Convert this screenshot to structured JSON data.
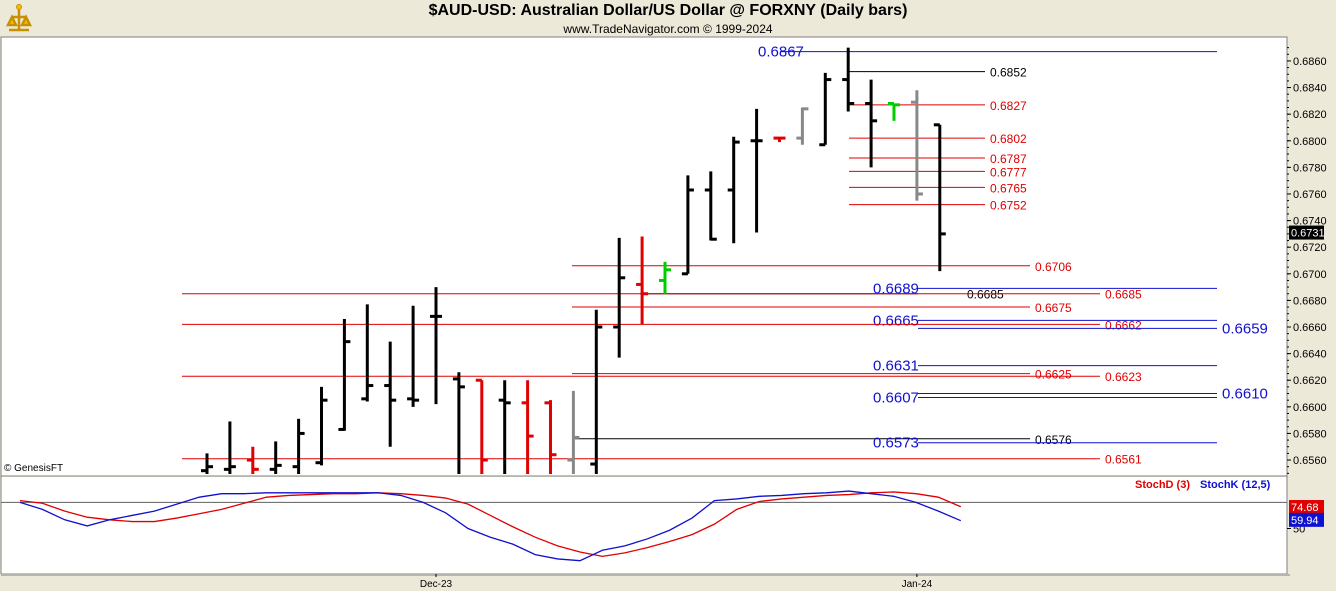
{
  "header": {
    "title": "$AUD-USD:  Australian Dollar/US Dollar @ FORXNY  (Daily bars)",
    "subtitle": "www.TradeNavigator.com © 1999-2024",
    "copyright": "© GenesisFT"
  },
  "colors": {
    "background": "#ffffff",
    "frame": "#ece9d8",
    "up_bar": "#000000",
    "down_bar": "#e00000",
    "neutral_bar": "#888888",
    "green_bar": "#00cc00",
    "red_level": "#e00000",
    "blue_level": "#1010d0",
    "black_level": "#000000",
    "stochD": "#e00000",
    "stochK": "#1010d0"
  },
  "chart_data": [
    {
      "type": "ohlc",
      "title": "$AUD-USD:  Australian Dollar/US Dollar @ FORXNY  (Daily bars)",
      "ylim": [
        0.6548,
        0.6878
      ],
      "y_ticks": [
        "0.6560",
        "0.6580",
        "0.6600",
        "0.6620",
        "0.6640",
        "0.6660",
        "0.6680",
        "0.6700",
        "0.6720",
        "0.6740",
        "0.6760",
        "0.6780",
        "0.6800",
        "0.6820",
        "0.6840",
        "0.6860"
      ],
      "last_price": "0.6731",
      "x_labels": [
        {
          "label": "Dec-23",
          "index": 10
        },
        {
          "label": "Jan-24",
          "index": 31
        }
      ],
      "bars": [
        {
          "o": 0.6552,
          "h": 0.6565,
          "l": 0.6548,
          "c": 0.6555,
          "color": "up"
        },
        {
          "o": 0.6553,
          "h": 0.6589,
          "l": 0.6548,
          "c": 0.6555,
          "color": "up"
        },
        {
          "o": 0.656,
          "h": 0.657,
          "l": 0.6548,
          "c": 0.6553,
          "color": "down"
        },
        {
          "o": 0.6553,
          "h": 0.6574,
          "l": 0.6548,
          "c": 0.6556,
          "color": "up"
        },
        {
          "o": 0.6555,
          "h": 0.6591,
          "l": 0.6548,
          "c": 0.658,
          "color": "up"
        },
        {
          "o": 0.6558,
          "h": 0.6615,
          "l": 0.6556,
          "c": 0.6605,
          "color": "up"
        },
        {
          "o": 0.6583,
          "h": 0.6666,
          "l": 0.6582,
          "c": 0.6649,
          "color": "up"
        },
        {
          "o": 0.6606,
          "h": 0.6677,
          "l": 0.6604,
          "c": 0.6616,
          "color": "up"
        },
        {
          "o": 0.6616,
          "h": 0.6649,
          "l": 0.657,
          "c": 0.6605,
          "color": "up"
        },
        {
          "o": 0.6606,
          "h": 0.6676,
          "l": 0.66,
          "c": 0.6605,
          "color": "up"
        },
        {
          "o": 0.6668,
          "h": 0.669,
          "l": 0.6602,
          "c": 0.6668,
          "color": "up"
        },
        {
          "o": 0.6621,
          "h": 0.6626,
          "l": 0.6548,
          "c": 0.6615,
          "color": "up"
        },
        {
          "o": 0.662,
          "h": 0.662,
          "l": 0.6548,
          "c": 0.656,
          "color": "down"
        },
        {
          "o": 0.6605,
          "h": 0.662,
          "l": 0.6548,
          "c": 0.6603,
          "color": "up"
        },
        {
          "o": 0.6603,
          "h": 0.662,
          "l": 0.6548,
          "c": 0.6578,
          "color": "down"
        },
        {
          "o": 0.6603,
          "h": 0.6605,
          "l": 0.6548,
          "c": 0.6564,
          "color": "down"
        },
        {
          "o": 0.656,
          "h": 0.6612,
          "l": 0.6548,
          "c": 0.6577,
          "color": "neutral"
        },
        {
          "o": 0.6557,
          "h": 0.6673,
          "l": 0.6548,
          "c": 0.666,
          "color": "up"
        },
        {
          "o": 0.666,
          "h": 0.6727,
          "l": 0.6637,
          "c": 0.6697,
          "color": "up"
        },
        {
          "o": 0.6692,
          "h": 0.6728,
          "l": 0.6662,
          "c": 0.6685,
          "color": "down"
        },
        {
          "o": 0.6695,
          "h": 0.6709,
          "l": 0.6685,
          "c": 0.6703,
          "color": "green"
        },
        {
          "o": 0.67,
          "h": 0.6774,
          "l": 0.67,
          "c": 0.6763,
          "color": "up"
        },
        {
          "o": 0.6763,
          "h": 0.6777,
          "l": 0.6725,
          "c": 0.6726,
          "color": "up"
        },
        {
          "o": 0.6763,
          "h": 0.6803,
          "l": 0.6723,
          "c": 0.6799,
          "color": "up"
        },
        {
          "o": 0.68,
          "h": 0.6824,
          "l": 0.6731,
          "c": 0.68,
          "color": "up"
        },
        {
          "o": 0.6802,
          "h": 0.6802,
          "l": 0.6799,
          "c": 0.6802,
          "color": "down"
        },
        {
          "o": 0.6802,
          "h": 0.6825,
          "l": 0.6797,
          "c": 0.6824,
          "color": "neutral"
        },
        {
          "o": 0.6797,
          "h": 0.6851,
          "l": 0.6797,
          "c": 0.6846,
          "color": "up"
        },
        {
          "o": 0.6846,
          "h": 0.687,
          "l": 0.6822,
          "c": 0.6828,
          "color": "up"
        },
        {
          "o": 0.6828,
          "h": 0.6846,
          "l": 0.678,
          "c": 0.6815,
          "color": "up"
        },
        {
          "o": 0.6828,
          "h": 0.6828,
          "l": 0.6815,
          "c": 0.6827,
          "color": "green"
        },
        {
          "o": 0.6829,
          "h": 0.6838,
          "l": 0.6755,
          "c": 0.676,
          "color": "neutral"
        },
        {
          "o": 0.6812,
          "h": 0.6812,
          "l": 0.6702,
          "c": 0.673,
          "color": "up"
        }
      ]
    },
    {
      "type": "line",
      "title": "StochD (3) / StochK (12,5)",
      "ylim": [
        0,
        100
      ],
      "y_ticks": [
        "50"
      ],
      "levels": [
        80
      ],
      "series": [
        {
          "name": "StochD (3)",
          "last": "74.68",
          "values": [
            82,
            79,
            70,
            63,
            60,
            58,
            58,
            62,
            67,
            72,
            79,
            86,
            88,
            89,
            90,
            90,
            91,
            90,
            88,
            85,
            78,
            65,
            52,
            40,
            30,
            23,
            18,
            22,
            28,
            35,
            43,
            55,
            72,
            81,
            84,
            86,
            88,
            89,
            91,
            92,
            90,
            86,
            75
          ]
        },
        {
          "name": "StochK (12,5)",
          "last": "59.94",
          "values": [
            80,
            72,
            60,
            53,
            60,
            65,
            70,
            78,
            86,
            90,
            90,
            91,
            91,
            91,
            91,
            91,
            91,
            88,
            80,
            68,
            50,
            40,
            32,
            20,
            15,
            13,
            25,
            30,
            38,
            48,
            62,
            82,
            84,
            87,
            88,
            90,
            91,
            93,
            90,
            87,
            80,
            70,
            59
          ]
        }
      ]
    }
  ],
  "levels": [
    {
      "value": "0.6867",
      "color": "blue",
      "style": "long"
    },
    {
      "value": "0.6852",
      "color": "black",
      "style": "short"
    },
    {
      "value": "0.6827",
      "color": "red",
      "style": "short"
    },
    {
      "value": "0.6802",
      "color": "red",
      "style": "short"
    },
    {
      "value": "0.6787",
      "color": "red",
      "style": "short"
    },
    {
      "value": "0.6777",
      "color": "red",
      "style": "short"
    },
    {
      "value": "0.6765",
      "color": "red",
      "style": "short"
    },
    {
      "value": "0.6752",
      "color": "red",
      "style": "short"
    },
    {
      "value": "0.6706",
      "color": "red",
      "style": "mid"
    },
    {
      "value": "0.6689",
      "color": "blue",
      "style": "long"
    },
    {
      "value": "0.6685",
      "color": "black",
      "style": "pair"
    },
    {
      "value": "0.6685",
      "color": "red",
      "style": "wide"
    },
    {
      "value": "0.6675",
      "color": "red",
      "style": "mid"
    },
    {
      "value": "0.6665",
      "color": "blue",
      "style": "long"
    },
    {
      "value": "0.6662",
      "color": "red",
      "style": "right"
    },
    {
      "value": "0.6659",
      "color": "blue",
      "style": "far"
    },
    {
      "value": "0.6631",
      "color": "blue",
      "style": "long"
    },
    {
      "value": "0.6625",
      "color": "red",
      "style": "mid"
    },
    {
      "value": "0.6623",
      "color": "red",
      "style": "wide"
    },
    {
      "value": "0.6610",
      "color": "blue",
      "style": "far"
    },
    {
      "value": "0.6607",
      "color": "blue",
      "style": "long"
    },
    {
      "value": "0.6576",
      "color": "black",
      "style": "mid"
    },
    {
      "value": "0.6573",
      "color": "blue",
      "style": "long"
    },
    {
      "value": "0.6561",
      "color": "red",
      "style": "wide"
    }
  ]
}
